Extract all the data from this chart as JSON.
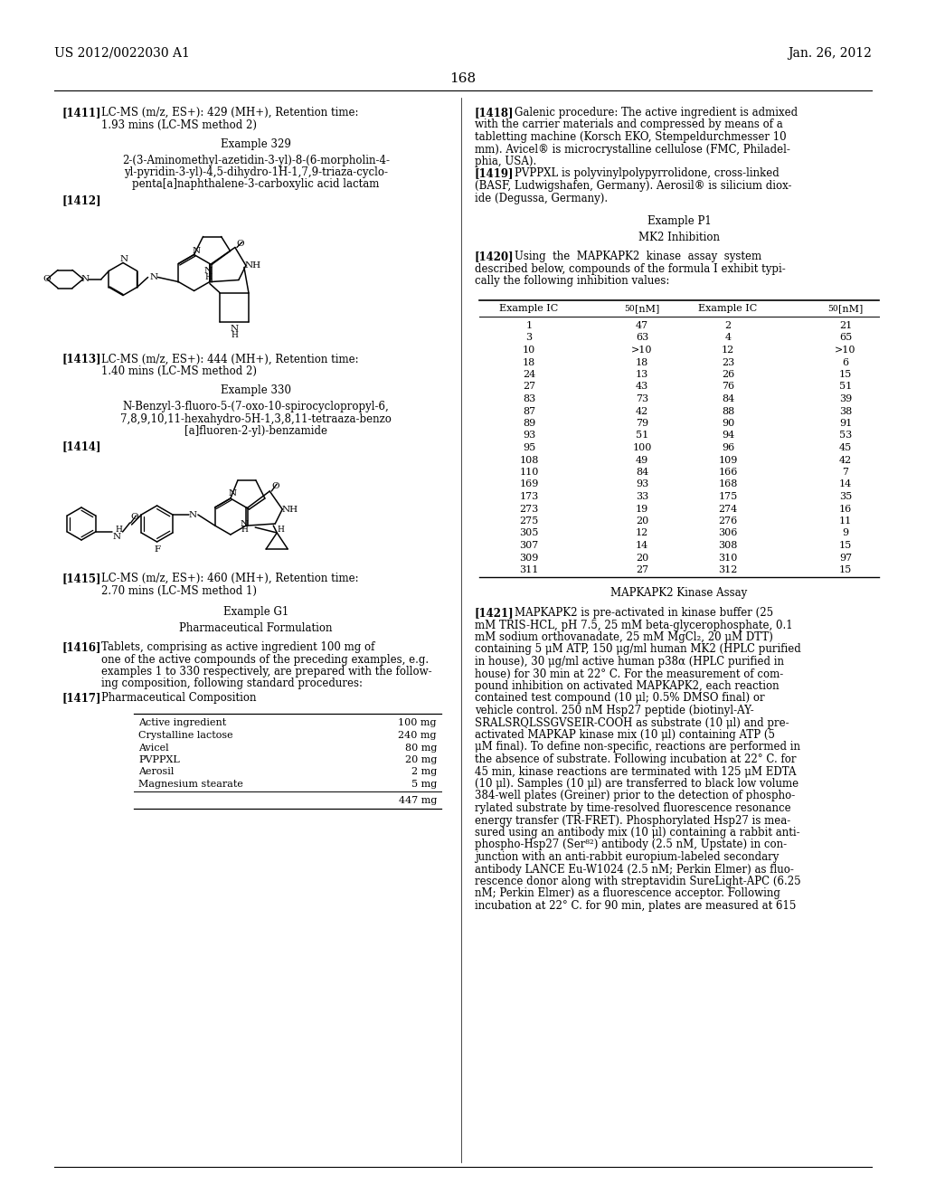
{
  "background_color": "#ffffff",
  "header_left": "US 2012/0022030 A1",
  "header_right": "Jan. 26, 2012",
  "page_number": "168",
  "left_col": {
    "p1411_tag": "[1411]",
    "p1411_line1": "LC-MS (m/z, ES+): 429 (MH+), Retention time:",
    "p1411_line2": "1.93 mins (LC-MS method 2)",
    "ex329_title": "Example 329",
    "ex329_name_lines": [
      "2-(3-Aminomethyl-azetidin-3-yl)-8-(6-morpholin-4-",
      "yl-pyridin-3-yl)-4,5-dihydro-1H-1,7,9-triaza-cyclo-",
      "penta[a]naphthalene-3-carboxylic acid lactam"
    ],
    "p1412_tag": "[1412]",
    "p1413_tag": "[1413]",
    "p1413_line1": "LC-MS (m/z, ES+): 444 (MH+), Retention time:",
    "p1413_line2": "1.40 mins (LC-MS method 2)",
    "ex330_title": "Example 330",
    "ex330_name_lines": [
      "N-Benzyl-3-fluoro-5-(7-oxo-10-spirocyclopropyl-6,",
      "7,8,9,10,11-hexahydro-5H-1,3,8,11-tetraaza-benzo",
      "[a]fluoren-2-yl)-benzamide"
    ],
    "p1414_tag": "[1414]",
    "p1415_tag": "[1415]",
    "p1415_line1": "LC-MS (m/z, ES+): 460 (MH+), Retention time:",
    "p1415_line2": "2.70 mins (LC-MS method 1)",
    "exG1_title": "Example G1",
    "pharma_title": "Pharmaceutical Formulation",
    "p1416_tag": "[1416]",
    "p1416_lines": [
      "Tablets, comprising as active ingredient 100 mg of",
      "one of the active compounds of the preceding examples, e.g.",
      "examples 1 to 330 respectively, are prepared with the follow-",
      "ing composition, following standard procedures:"
    ],
    "p1417_tag": "[1417]",
    "p1417_text": "Pharmaceutical Composition",
    "table_rows": [
      [
        "Active ingredient",
        "100 mg"
      ],
      [
        "Crystalline lactose",
        "240 mg"
      ],
      [
        "Avicel",
        "80 mg"
      ],
      [
        "PVPPXL",
        "20 mg"
      ],
      [
        "Aerosil",
        "2 mg"
      ],
      [
        "Magnesium stearate",
        "5 mg"
      ]
    ],
    "table_total": "447 mg"
  },
  "right_col": {
    "p1418_tag": "[1418]",
    "p1418_lines": [
      "Galenic procedure: The active ingredient is admixed",
      "with the carrier materials and compressed by means of a",
      "tabletting machine (Korsch EKO, Stempeldurchmesser 10",
      "mm). Avicel® is microcrystalline cellulose (FMC, Philadel-",
      "phia, USA)."
    ],
    "p1419_tag": "[1419]",
    "p1419_lines": [
      "PVPPXL is polyvinylpolypyrrolidone, cross-linked",
      "(BASF, Ludwigshafen, Germany). Aerosil® is silicium diox-",
      "ide (Degussa, Germany)."
    ],
    "exP1_title": "Example P1",
    "mk2_title": "MK2 Inhibition",
    "p1420_tag": "[1420]",
    "p1420_lines": [
      "Using  the  MAPKAPK2  kinase  assay  system",
      "described below, compounds of the formula I exhibit typi-",
      "cally the following inhibition values:"
    ],
    "ic50_rows": [
      [
        "1",
        "47",
        "2",
        "21"
      ],
      [
        "3",
        "63",
        "4",
        "65"
      ],
      [
        "10",
        ">10",
        "12",
        ">10"
      ],
      [
        "18",
        "18",
        "23",
        "6"
      ],
      [
        "24",
        "13",
        "26",
        "15"
      ],
      [
        "27",
        "43",
        "76",
        "51"
      ],
      [
        "83",
        "73",
        "84",
        "39"
      ],
      [
        "87",
        "42",
        "88",
        "38"
      ],
      [
        "89",
        "79",
        "90",
        "91"
      ],
      [
        "93",
        "51",
        "94",
        "53"
      ],
      [
        "95",
        "100",
        "96",
        "45"
      ],
      [
        "108",
        "49",
        "109",
        "42"
      ],
      [
        "110",
        "84",
        "166",
        "7"
      ],
      [
        "169",
        "93",
        "168",
        "14"
      ],
      [
        "173",
        "33",
        "175",
        "35"
      ],
      [
        "273",
        "19",
        "274",
        "16"
      ],
      [
        "275",
        "20",
        "276",
        "11"
      ],
      [
        "305",
        "12",
        "306",
        "9"
      ],
      [
        "307",
        "14",
        "308",
        "15"
      ],
      [
        "309",
        "20",
        "310",
        "97"
      ],
      [
        "311",
        "27",
        "312",
        "15"
      ]
    ],
    "mapk_title": "MAPKAPK2 Kinase Assay",
    "p1421_tag": "[1421]",
    "p1421_lines": [
      "MAPKAPK2 is pre-activated in kinase buffer (25",
      "mM TRIS-HCL, pH 7.5, 25 mM beta-glycerophosphate, 0.1",
      "mM sodium orthovanadate, 25 mM MgCl₂, 20 μM DTT)",
      "containing 5 μM ATP, 150 μg/ml human MK2 (HPLC purified",
      "in house), 30 μg/ml active human p38α (HPLC purified in",
      "house) for 30 min at 22° C. For the measurement of com-",
      "pound inhibition on activated MAPKAPK2, each reaction",
      "contained test compound (10 μl; 0.5% DMSO final) or",
      "vehicle control. 250 nM Hsp27 peptide (biotinyl-AY-",
      "SRALSRQLSSGVSEIR-COOH as substrate (10 μl) and pre-",
      "activated MAPKAP kinase mix (10 μl) containing ATP (5",
      "μM final). To define non-specific, reactions are performed in",
      "the absence of substrate. Following incubation at 22° C. for",
      "45 min, kinase reactions are terminated with 125 μM EDTA",
      "(10 μl). Samples (10 μl) are transferred to black low volume",
      "384-well plates (Greiner) prior to the detection of phospho-",
      "rylated substrate by time-resolved fluorescence resonance",
      "energy transfer (TR-FRET). Phosphorylated Hsp27 is mea-",
      "sured using an antibody mix (10 μl) containing a rabbit anti-",
      "phospho-Hsp27 (Ser⁸²) antibody (2.5 nM, Upstate) in con-",
      "junction with an anti-rabbit europium-labeled secondary",
      "antibody LANCE Eu-W1024 (2.5 nM; Perkin Elmer) as fluo-",
      "rescence donor along with streptavidin SureLight-APC (6.25",
      "nM; Perkin Elmer) as a fluorescence acceptor. Following",
      "incubation at 22° C. for 90 min, plates are measured at 615"
    ]
  }
}
